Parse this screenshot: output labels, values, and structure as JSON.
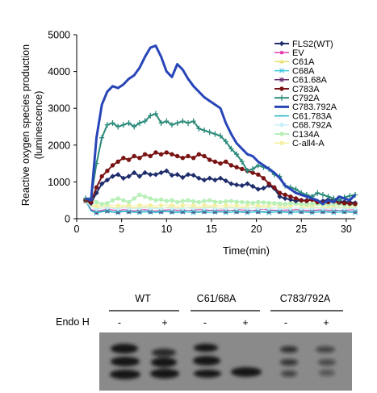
{
  "chart_data": {
    "type": "line",
    "ylabel": "Reactive oxygen species production",
    "ylabel2": "(luminescence)",
    "xlabel": "Time(min)",
    "xlim": [
      0,
      31
    ],
    "ylim": [
      0,
      5000
    ],
    "xticks": [
      0,
      5,
      10,
      15,
      20,
      25,
      30
    ],
    "yticks": [
      0,
      1000,
      2000,
      3000,
      4000,
      5000
    ],
    "legend_position": "top-right",
    "x": [
      1,
      1.6,
      2.2,
      2.8,
      3.4,
      4,
      4.6,
      5.2,
      5.8,
      6.4,
      7,
      7.6,
      8.2,
      8.8,
      9.4,
      10,
      10.6,
      11.2,
      11.8,
      12.4,
      13,
      13.6,
      14.2,
      14.8,
      15.4,
      16,
      16.6,
      17.2,
      17.8,
      18.4,
      19,
      19.6,
      20.2,
      20.8,
      21.4,
      22,
      22.6,
      23.2,
      23.8,
      24.4,
      25,
      25.6,
      26.2,
      26.8,
      27.4,
      28,
      28.6,
      29.2,
      29.8,
      30.4,
      31
    ],
    "series": [
      {
        "name": "FLS2(WT)",
        "color": "#1f2d6b",
        "marker": "diamond",
        "width": 2,
        "values": [
          500,
          420,
          700,
          950,
          1050,
          1150,
          1200,
          1100,
          1150,
          1250,
          1150,
          1250,
          1200,
          1200,
          1250,
          1300,
          1180,
          1200,
          1120,
          1200,
          1180,
          1100,
          1050,
          1100,
          1050,
          1100,
          1030,
          950,
          920,
          900,
          950,
          880,
          800,
          830,
          900,
          820,
          600,
          550,
          520,
          480,
          500,
          500,
          520,
          450,
          480,
          520,
          500,
          480,
          460,
          450,
          430
        ]
      },
      {
        "name": "EV",
        "color": "#e040b0",
        "marker": "square",
        "width": 1,
        "values": [
          480,
          250,
          200,
          230,
          260,
          240,
          220,
          250,
          230,
          210,
          240,
          250,
          220,
          210,
          230,
          240,
          250,
          230,
          240,
          220,
          230,
          250,
          240,
          230,
          220,
          240,
          230,
          220,
          250,
          240,
          230,
          220,
          250,
          260,
          240,
          230,
          220,
          240,
          230,
          250,
          240,
          230,
          220,
          240,
          250,
          230,
          240,
          220,
          230,
          240,
          250
        ]
      },
      {
        "name": "C61A",
        "color": "#e8e070",
        "marker": "triangle",
        "width": 1,
        "values": [
          480,
          350,
          300,
          320,
          340,
          300,
          280,
          330,
          310,
          290,
          300,
          320,
          310,
          300,
          280,
          300,
          320,
          300,
          280,
          300,
          310,
          290,
          300,
          320,
          300,
          280,
          300,
          310,
          290,
          300,
          280,
          300,
          310,
          320,
          300,
          290,
          300,
          310,
          290,
          280,
          300,
          320,
          310,
          300,
          290,
          300,
          310,
          300,
          290,
          300,
          310
        ]
      },
      {
        "name": "C68A",
        "color": "#40c8e0",
        "marker": "x",
        "width": 1,
        "values": [
          480,
          200,
          150,
          180,
          200,
          170,
          160,
          190,
          180,
          170,
          160,
          180,
          170,
          160,
          180,
          190,
          170,
          160,
          180,
          170,
          160,
          170,
          180,
          160,
          170,
          180,
          160,
          170,
          180,
          170,
          160,
          170,
          180,
          170,
          160,
          170,
          180,
          170,
          160,
          170,
          180,
          170,
          160,
          170,
          180,
          170,
          160,
          170,
          180,
          170,
          160
        ]
      },
      {
        "name": "C61.68A",
        "color": "#6a2a6a",
        "marker": "asterisk",
        "width": 1,
        "values": [
          480,
          230,
          180,
          210,
          220,
          200,
          190,
          210,
          200,
          190,
          200,
          210,
          200,
          190,
          200,
          210,
          200,
          190,
          200,
          210,
          200,
          190,
          200,
          210,
          200,
          190,
          200,
          210,
          200,
          190,
          200,
          210,
          200,
          190,
          200,
          210,
          200,
          190,
          200,
          210,
          200,
          190,
          200,
          210,
          200,
          190,
          200,
          210,
          200,
          190,
          200
        ]
      },
      {
        "name": "C783A",
        "color": "#7a1414",
        "marker": "circle",
        "width": 2,
        "values": [
          500,
          450,
          850,
          1150,
          1300,
          1450,
          1550,
          1650,
          1600,
          1700,
          1650,
          1750,
          1700,
          1800,
          1750,
          1800,
          1750,
          1700,
          1650,
          1700,
          1650,
          1750,
          1700,
          1600,
          1550,
          1500,
          1550,
          1450,
          1400,
          1350,
          1300,
          1250,
          1200,
          1100,
          950,
          850,
          700,
          650,
          600,
          550,
          500,
          480,
          520,
          450,
          430,
          450,
          470,
          440,
          420,
          410,
          400
        ]
      },
      {
        "name": "C792A",
        "color": "#2a8a7a",
        "marker": "plus",
        "width": 2,
        "values": [
          550,
          550,
          1500,
          2200,
          2550,
          2600,
          2500,
          2550,
          2600,
          2500,
          2600,
          2650,
          2800,
          2850,
          2600,
          2650,
          2550,
          2600,
          2650,
          2600,
          2650,
          2450,
          2400,
          2350,
          2300,
          2250,
          2100,
          1900,
          1750,
          1550,
          1300,
          1350,
          1450,
          1400,
          1350,
          1200,
          1150,
          900,
          850,
          800,
          700,
          650,
          600,
          700,
          650,
          600,
          550,
          500,
          580,
          620,
          650
        ]
      },
      {
        "name": "C783.792A",
        "color": "#2845b8",
        "marker": "none",
        "width": 3,
        "values": [
          550,
          500,
          2200,
          3100,
          3450,
          3600,
          3550,
          3650,
          3800,
          3900,
          4100,
          4400,
          4650,
          4700,
          4400,
          4000,
          3850,
          4200,
          4050,
          3800,
          3600,
          3450,
          3300,
          3200,
          3100,
          3000,
          2600,
          2300,
          2050,
          1900,
          1750,
          1700,
          1550,
          1450,
          1350,
          1250,
          1100,
          900,
          800,
          700,
          650,
          600,
          550,
          500,
          400,
          500,
          450,
          600,
          550,
          500,
          650
        ]
      },
      {
        "name": "C61.783A",
        "color": "#2bb5c5",
        "marker": "dash",
        "width": 1,
        "values": [
          480,
          220,
          180,
          200,
          220,
          200,
          190,
          210,
          200,
          190,
          200,
          210,
          200,
          190,
          200,
          210,
          200,
          190,
          200,
          210,
          200,
          190,
          200,
          210,
          200,
          190,
          200,
          210,
          200,
          190,
          200,
          210,
          200,
          190,
          200,
          210,
          200,
          190,
          200,
          210,
          200,
          190,
          200,
          210,
          200,
          190,
          200,
          210,
          200,
          190,
          200
        ]
      },
      {
        "name": "C68.792A",
        "color": "#c8f0f8",
        "marker": "circle",
        "width": 1,
        "values": [
          480,
          300,
          260,
          280,
          300,
          280,
          270,
          290,
          280,
          270,
          280,
          290,
          280,
          270,
          280,
          290,
          280,
          270,
          280,
          290,
          280,
          270,
          280,
          290,
          280,
          270,
          280,
          290,
          280,
          270,
          280,
          290,
          280,
          270,
          280,
          290,
          280,
          270,
          280,
          290,
          280,
          270,
          280,
          290,
          280,
          270,
          280,
          290,
          280,
          270,
          280
        ]
      },
      {
        "name": "C134A",
        "color": "#b8f0b8",
        "marker": "circle",
        "width": 2,
        "values": [
          480,
          550,
          450,
          400,
          420,
          500,
          550,
          500,
          450,
          550,
          650,
          600,
          550,
          500,
          520,
          480,
          500,
          450,
          480,
          500,
          470,
          450,
          480,
          500,
          460,
          450,
          470,
          480,
          460,
          450,
          440,
          430,
          450,
          440,
          430,
          420,
          410,
          400,
          420,
          410,
          400,
          390,
          410,
          400,
          390,
          380,
          400,
          390,
          380,
          370,
          380
        ]
      },
      {
        "name": "C-all4-A",
        "color": "#f4f0a0",
        "marker": "circle",
        "width": 1,
        "values": [
          480,
          380,
          350,
          370,
          380,
          360,
          350,
          370,
          360,
          350,
          360,
          370,
          360,
          350,
          360,
          370,
          360,
          350,
          360,
          370,
          360,
          350,
          360,
          370,
          360,
          350,
          360,
          370,
          360,
          350,
          360,
          370,
          360,
          350,
          360,
          370,
          360,
          350,
          360,
          370,
          360,
          350,
          360,
          370,
          360,
          350,
          360,
          370,
          360,
          350,
          360
        ]
      }
    ]
  },
  "blot": {
    "groups": [
      "WT",
      "C61/68A",
      "C783/792A"
    ],
    "row_label": "Endo H",
    "signs": [
      "-",
      "+",
      "-",
      "+",
      "-",
      "+"
    ]
  }
}
